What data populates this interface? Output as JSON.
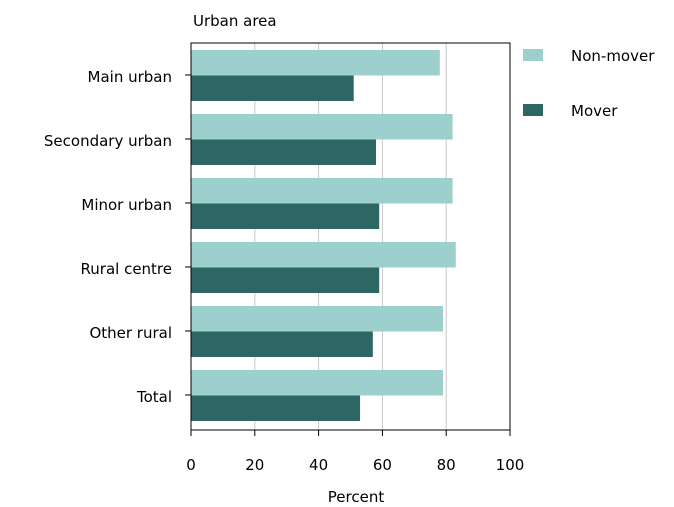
{
  "chart_data": {
    "type": "bar",
    "orientation": "horizontal",
    "title": "Urban area",
    "xlabel": "Percent",
    "ylabel": "",
    "xlim": [
      0,
      100
    ],
    "xticks": [
      "0",
      "20",
      "40",
      "60",
      "80",
      "100"
    ],
    "grid": true,
    "legend_position": "top-right",
    "categories": [
      "Main urban",
      "Secondary urban",
      "Minor urban",
      "Rural centre",
      "Other rural",
      "Total"
    ],
    "series": [
      {
        "name": "Non-mover",
        "color": "#9dcfcd",
        "values": [
          78,
          82,
          82,
          83,
          79,
          79
        ]
      },
      {
        "name": "Mover",
        "color": "#2e6663",
        "values": [
          51,
          58,
          59,
          59,
          57,
          53
        ]
      }
    ]
  }
}
